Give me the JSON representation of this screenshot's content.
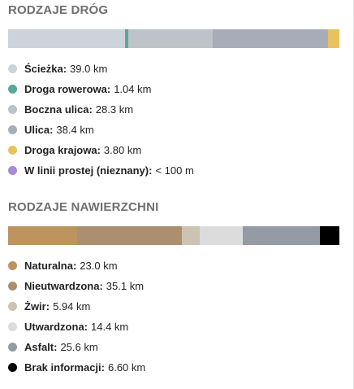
{
  "road_types": {
    "title": "RODZAJE DRÓG",
    "items": [
      {
        "label": "Ścieżka:",
        "value": "39.0 km",
        "color": "#ccd3da",
        "share": 0.3519
      },
      {
        "label": "Droga rowerowa:",
        "value": "1.04 km",
        "color": "#5ba69a",
        "share": 0.0094
      },
      {
        "label": "Boczna ulica:",
        "value": "28.3 km",
        "color": "#bcc3c9",
        "share": 0.2553
      },
      {
        "label": "Ulica:",
        "value": "38.4 km",
        "color": "#a6adb8",
        "share": 0.3464
      },
      {
        "label": "Droga krajowa:",
        "value": "3.80 km",
        "color": "#e6c35c",
        "share": 0.0343
      },
      {
        "label": "W linii prostej (nieznany):",
        "value": "< 100 m",
        "color": "#a98ad8",
        "share": 0.0
      }
    ]
  },
  "surface_types": {
    "title": "RODZAJE NAWIERZCHNI",
    "items": [
      {
        "label": "Naturalna:",
        "value": "23.0 km",
        "color": "#bd935e",
        "share": 0.2075
      },
      {
        "label": "Nieutwardzona:",
        "value": "35.1 km",
        "color": "#ab8f70",
        "share": 0.3166
      },
      {
        "label": "Żwir:",
        "value": "5.94 km",
        "color": "#cdc3b2",
        "share": 0.0536
      },
      {
        "label": "Utwardzona:",
        "value": "14.4 km",
        "color": "#dcdcdc",
        "share": 0.1299
      },
      {
        "label": "Asfalt:",
        "value": "25.6 km",
        "color": "#959ba4",
        "share": 0.2309
      },
      {
        "label": "Brak informacji:",
        "value": "6.60 km",
        "color": "#000000",
        "share": 0.0595
      }
    ]
  }
}
